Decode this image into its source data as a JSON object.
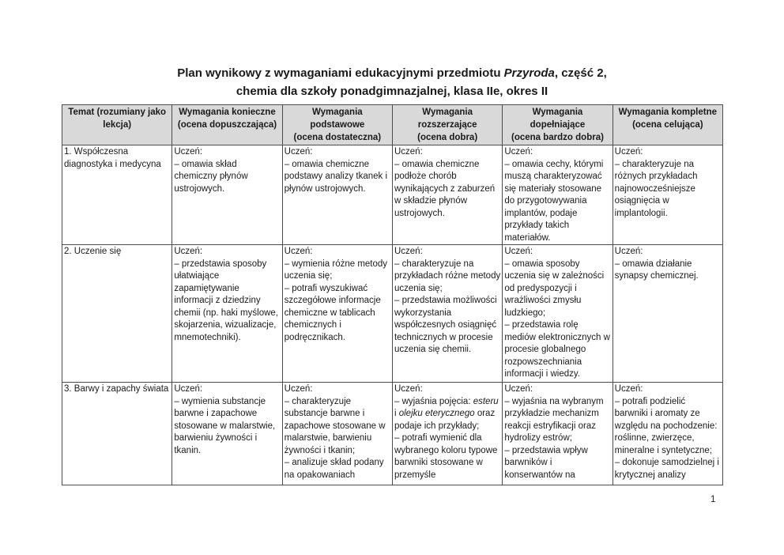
{
  "page": {
    "title_line1_segments": [
      {
        "text": "Plan wynikowy z wymaganiami edukacyjnymi przedmiotu "
      },
      {
        "text": "Przyroda",
        "italic": true
      },
      {
        "text": ", część 2,"
      }
    ],
    "title_line2": "chemia dla szkoły ponadgimnazjalnej, klasa IIe, okres II",
    "page_number": "1"
  },
  "table": {
    "headers": [
      "Temat (rozumiany jako\nlekcja)",
      "Wymagania konieczne\n(ocena dopuszczająca)",
      "Wymagania podstawowe\n(ocena dostateczna)",
      "Wymagania rozszerzające\n(ocena dobra)",
      "Wymagania dopełniające\n(ocena bardzo dobra)",
      "Wymagania kompletne\n(ocena celująca)"
    ],
    "rows": [
      {
        "topic": "1. Współczesna diagnostyka i medycyna",
        "konieczne": "Uczeń:\n– omawia skład chemiczny płynów ustrojowych.",
        "podstawowe": "Uczeń:\n– omawia chemiczne podstawy analizy tkanek i płynów ustrojowych.",
        "rozszerzajace": "Uczeń:\n– omawia chemiczne podłoże chorób wynikających z zaburzeń w składzie płynów ustrojowych.",
        "dopelniajace": "Uczeń:\n– omawia cechy, którymi muszą charakteryzować się materiały stosowane do przygotowywania implantów, podaje przykłady takich materiałów.",
        "kompletne": "Uczeń:\n– charakteryzuje na różnych przykładach najnowocześniejsze osiągnięcia w implantologii."
      },
      {
        "topic": "2. Uczenie się",
        "konieczne": "Uczeń:\n– przedstawia sposoby ułatwiające zapamiętywanie informacji z dziedziny chemii (np. haki myślowe, skojarzenia, wizualizacje, mnemotechniki).",
        "podstawowe": "Uczeń:\n– wymienia różne metody uczenia się;\n– potrafi wyszukiwać szczegółowe informacje chemiczne w tablicach chemicznych i podręcznikach.",
        "rozszerzajace": "Uczeń:\n– charakteryzuje na przykładach różne metody uczenia się;\n– przedstawia możliwości wykorzystania współczesnych osiągnięć technicznych w procesie uczenia się chemii.",
        "dopelniajace": "Uczeń:\n– omawia sposoby uczenia się w zależności od predyspozycji i wrażliwości zmysłu ludzkiego;\n– przedstawia rolę mediów elektronicznych w procesie globalnego rozpowszechniania informacji i wiedzy.",
        "kompletne": "Uczeń:\n– omawia działanie synapsy chemicznej."
      },
      {
        "topic": "3. Barwy i zapachy świata",
        "konieczne": "Uczeń:\n– wymienia substancje barwne i zapachowe stosowane w malarstwie, barwieniu żywności i tkanin.",
        "podstawowe": "Uczeń:\n– charakteryzuje substancje barwne i zapachowe stosowane w malarstwie, barwieniu żywności i tkanin;\n– analizuje skład podany na opakowaniach",
        "rozszerzajace_segments": [
          {
            "text": "Uczeń:\n– wyjaśnia pojęcia: "
          },
          {
            "text": "esteru",
            "italic": true
          },
          {
            "text": " i "
          },
          {
            "text": "olejku eterycznego",
            "italic": true
          },
          {
            "text": " oraz podaje ich przykłady;\n– potrafi wymienić dla wybranego  koloru typowe barwniki stosowane w przemyśle"
          }
        ],
        "dopelniajace": "Uczeń:\n– wyjaśnia na wybranym przykładzie mechanizm reakcji estryfikacji oraz hydrolizy estrów;\n– przedstawia wpływ barwników i konserwantów na",
        "kompletne": "Uczeń:\n– potrafi podzielić barwniki i aromaty ze względu na pochodzenie: roślinne, zwierzęce, mineralne i syntetyczne;\n– dokonuje samodzielnej i krytycznej analizy"
      }
    ]
  }
}
